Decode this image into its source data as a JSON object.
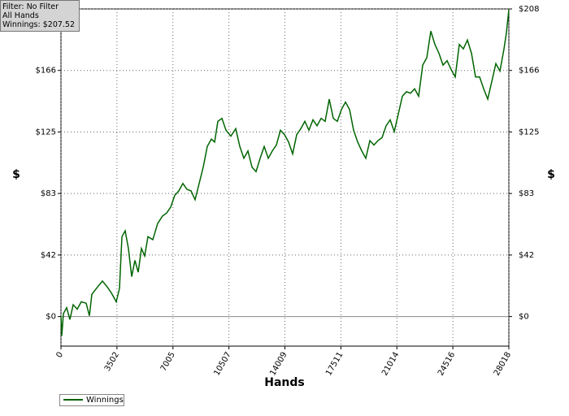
{
  "chart_data": {
    "type": "line",
    "annotations": [
      "Filter: No Filter",
      "All Hands",
      "Winnings: $207.52"
    ],
    "x_label": "Hands",
    "y_label": "$",
    "y2_label": "$",
    "x": [
      0,
      51,
      153,
      356,
      559,
      763,
      1017,
      1271,
      1576,
      1780,
      1932,
      2288,
      2593,
      2898,
      3153,
      3458,
      3661,
      3814,
      4017,
      4220,
      4424,
      4627,
      4831,
      5034,
      5237,
      5441,
      5746,
      6051,
      6356,
      6610,
      6865,
      7119,
      7373,
      7627,
      7882,
      8136,
      8390,
      8645,
      8899,
      9153,
      9408,
      9611,
      9815,
      10069,
      10323,
      10628,
      10934,
      11188,
      11442,
      11697,
      11951,
      12205,
      12459,
      12713,
      12968,
      13222,
      13476,
      13731,
      13985,
      14239,
      14493,
      14748,
      15002,
      15256,
      15510,
      15765,
      16019,
      16273,
      16527,
      16782,
      17036,
      17290,
      17545,
      17799,
      18053,
      18307,
      18562,
      18816,
      19070,
      19324,
      19579,
      19833,
      20087,
      20341,
      20596,
      20850,
      21104,
      21358,
      21613,
      21867,
      22121,
      22375,
      22630,
      22884,
      23138,
      23392,
      23647,
      23901,
      24155,
      24409,
      24664,
      24918,
      25172,
      25426,
      25681,
      25935,
      26189,
      26443,
      26698,
      26952,
      27206,
      27460,
      27715,
      27867,
      28018
    ],
    "series": [
      {
        "name": "Winnings",
        "color": "#006400",
        "values": [
          0,
          -13,
          2,
          6,
          -2,
          8,
          5,
          10,
          9,
          0.5,
          15,
          20,
          24,
          20,
          16,
          10,
          19,
          54,
          58,
          46,
          27,
          38,
          30,
          46,
          41,
          54,
          52,
          63,
          68,
          70,
          74,
          82,
          85,
          90,
          86,
          85,
          79,
          90,
          101,
          115,
          120,
          118,
          132,
          134,
          126,
          122,
          127,
          115,
          107,
          112,
          101,
          98,
          107,
          115,
          107,
          112,
          116,
          126,
          123,
          118,
          110,
          123,
          127,
          132,
          126,
          133,
          129,
          134,
          132,
          147,
          134,
          132,
          140,
          145,
          140,
          126,
          118,
          112,
          107,
          119,
          116,
          119,
          121,
          129,
          133,
          125,
          137,
          149,
          152,
          151,
          154,
          149,
          170,
          175,
          193,
          184,
          178,
          170,
          173,
          167,
          162,
          184,
          181,
          187,
          178,
          162,
          162,
          154,
          147,
          159,
          171,
          166,
          181,
          192,
          207.52
        ]
      }
    ],
    "xlim": [
      0,
      28018
    ],
    "xticks": [
      0,
      3502,
      7005,
      10507,
      14009,
      17511,
      21014,
      24516,
      28018
    ],
    "ylim": [
      -20,
      208
    ],
    "yticks": [
      {
        "value": 0,
        "label": "$0"
      },
      {
        "value": 41.6,
        "label": "$42"
      },
      {
        "value": 83.2,
        "label": "$83"
      },
      {
        "value": 124.8,
        "label": "$125"
      },
      {
        "value": 166.4,
        "label": "$166"
      },
      {
        "value": 208,
        "label": "$208"
      }
    ],
    "grid": true
  }
}
